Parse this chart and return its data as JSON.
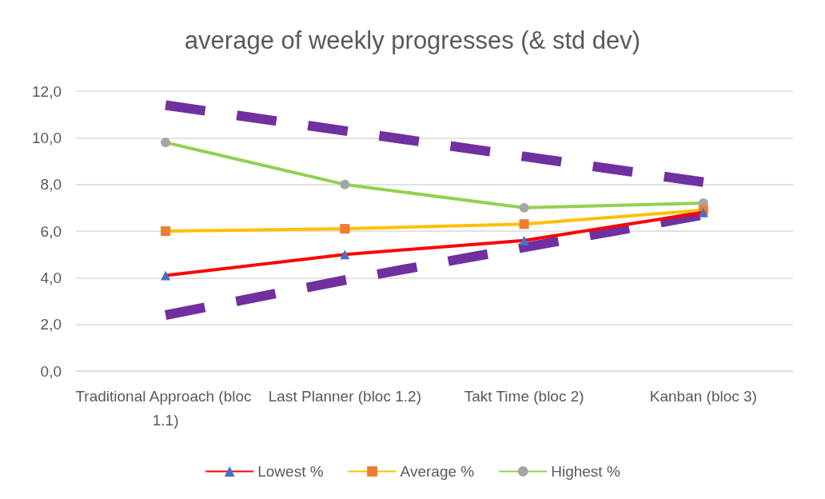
{
  "chart_data": {
    "type": "line",
    "title": "average of weekly progresses (& std dev)",
    "categories": [
      "Traditional Approach (bloc 1.1)",
      "Last Planner (bloc 1.2)",
      "Takt Time (bloc 2)",
      "Kanban (bloc 3)"
    ],
    "series": [
      {
        "name": "Lowest %",
        "color": "#ff0000",
        "marker": "triangle",
        "values": [
          4.1,
          5.0,
          5.6,
          6.8
        ]
      },
      {
        "name": "Average %",
        "color": "#ffc000",
        "marker": "square",
        "values": [
          6.0,
          6.1,
          6.3,
          6.9
        ]
      },
      {
        "name": "Highest %",
        "color": "#92d050",
        "marker": "circle",
        "values": [
          9.8,
          8.0,
          7.0,
          7.2
        ]
      },
      {
        "color": "#7030a0",
        "marker": "none",
        "line_style": "dashed",
        "values": [
          11.4,
          10.3,
          9.2,
          8.1
        ]
      },
      {
        "color": "#7030a0",
        "marker": "none",
        "line_style": "dashed",
        "values": [
          2.4,
          3.9,
          5.3,
          6.7
        ]
      }
    ],
    "ylim": [
      0,
      12
    ],
    "yticks": [
      {
        "value": 0,
        "label": "0,0"
      },
      {
        "value": 2,
        "label": "2,0"
      },
      {
        "value": 4,
        "label": "4,0"
      },
      {
        "value": 6,
        "label": "6,0"
      },
      {
        "value": 8,
        "label": "8,0"
      },
      {
        "value": 10,
        "label": "10,0"
      },
      {
        "value": 12,
        "label": "12,0"
      }
    ],
    "grid": "y",
    "legend": "bottom"
  }
}
